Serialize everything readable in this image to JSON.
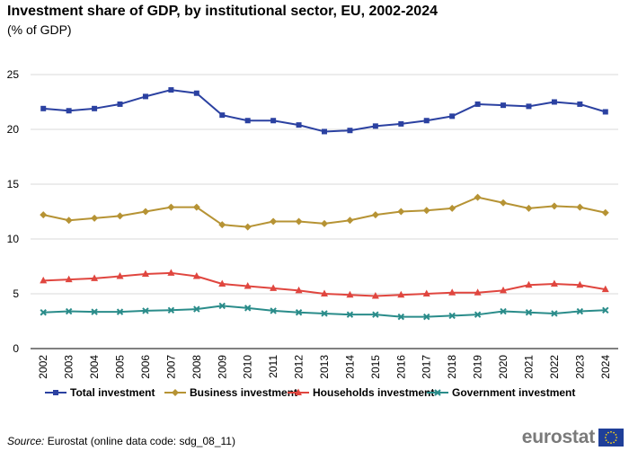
{
  "title": "Investment share of GDP, by institutional sector, EU, 2002-2024",
  "subtitle": "(% of GDP)",
  "source": {
    "label": "Source:",
    "text": "Eurostat (online data code: sdg_08_11)"
  },
  "logo": {
    "text": "eurostat",
    "flag": "eu-flag-icon"
  },
  "chart_data": {
    "type": "line",
    "title": "Investment share of GDP, by institutional sector, EU, 2002-2024",
    "subtitle": "(% of GDP)",
    "xlabel": "",
    "ylabel": "",
    "ylim": [
      0,
      25
    ],
    "yticks": [
      "0",
      "5",
      "10",
      "15",
      "20",
      "25"
    ],
    "grid": "horizontal",
    "legend_position": "bottom",
    "categories": [
      "2002",
      "2003",
      "2004",
      "2005",
      "2006",
      "2007",
      "2008",
      "2009",
      "2010",
      "2011",
      "2012",
      "2013",
      "2014",
      "2015",
      "2016",
      "2017",
      "2018",
      "2019",
      "2020",
      "2021",
      "2022",
      "2023",
      "2024"
    ],
    "series": [
      {
        "name": "Total investment",
        "color": "#2b41a1",
        "marker": "square",
        "values": [
          21.9,
          21.7,
          21.9,
          22.3,
          23.0,
          23.6,
          23.3,
          21.3,
          20.8,
          20.8,
          20.4,
          19.8,
          19.9,
          20.3,
          20.5,
          20.8,
          21.2,
          22.3,
          22.2,
          22.1,
          22.5,
          22.3,
          21.6
        ]
      },
      {
        "name": "Business investment",
        "color": "#b69334",
        "marker": "diamond",
        "values": [
          12.2,
          11.7,
          11.9,
          12.1,
          12.5,
          12.9,
          12.9,
          11.3,
          11.1,
          11.6,
          11.6,
          11.4,
          11.7,
          12.2,
          12.5,
          12.6,
          12.8,
          13.8,
          13.3,
          12.8,
          13.0,
          12.9,
          12.4
        ]
      },
      {
        "name": "Households investment",
        "color": "#e0463f",
        "marker": "triangle",
        "values": [
          6.2,
          6.3,
          6.4,
          6.6,
          6.8,
          6.9,
          6.6,
          5.9,
          5.7,
          5.5,
          5.3,
          5.0,
          4.9,
          4.8,
          4.9,
          5.0,
          5.1,
          5.1,
          5.3,
          5.8,
          5.9,
          5.8,
          5.4
        ]
      },
      {
        "name": "Government investment",
        "color": "#2a8c8a",
        "marker": "cross",
        "values": [
          3.3,
          3.4,
          3.35,
          3.35,
          3.45,
          3.5,
          3.6,
          3.9,
          3.7,
          3.45,
          3.3,
          3.2,
          3.1,
          3.1,
          2.9,
          2.9,
          3.0,
          3.1,
          3.4,
          3.3,
          3.2,
          3.4,
          3.5
        ]
      }
    ]
  }
}
